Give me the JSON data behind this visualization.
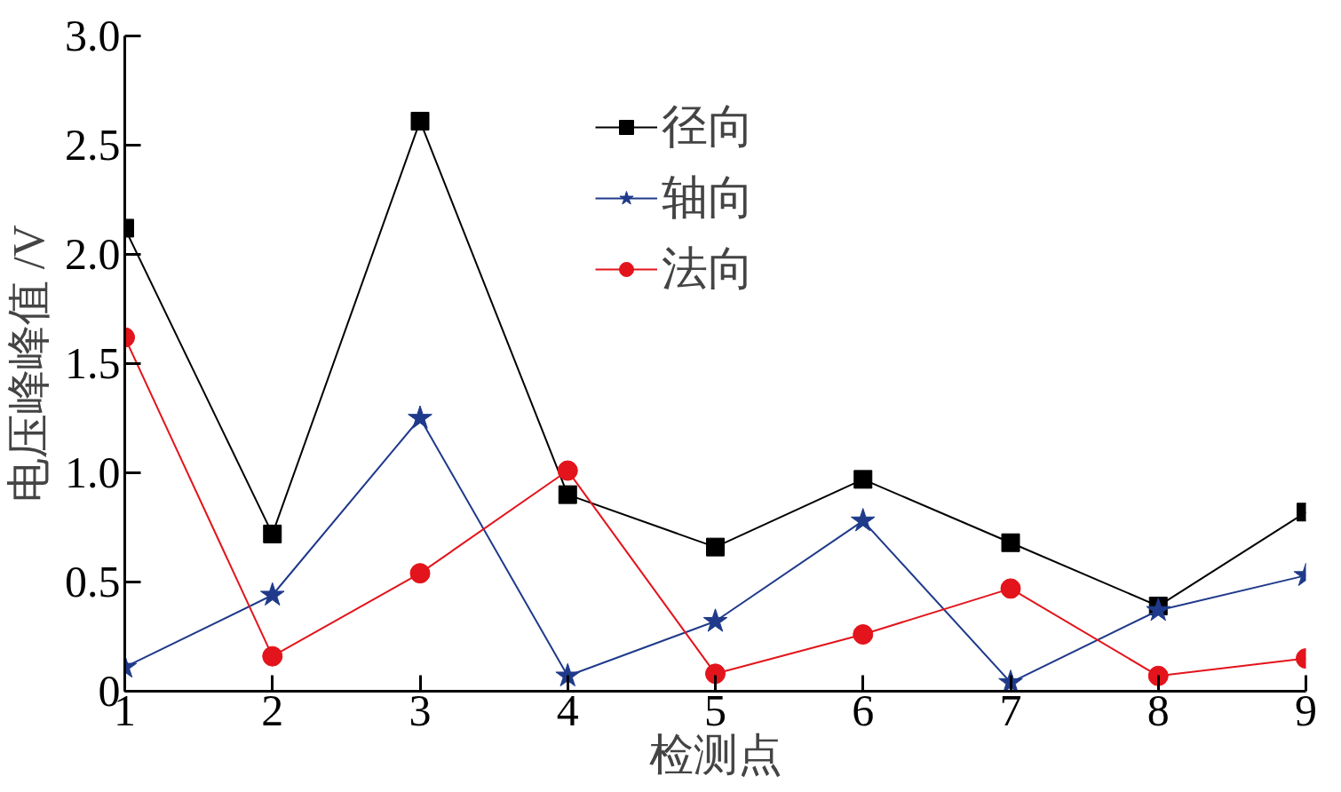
{
  "chart_data": {
    "type": "line",
    "xlabel": "检测点",
    "ylabel": "电压峰峰值 /V",
    "x": [
      1,
      2,
      3,
      4,
      5,
      6,
      7,
      8,
      9
    ],
    "xlim": [
      1,
      9
    ],
    "xticks": [
      1,
      2,
      3,
      4,
      5,
      6,
      7,
      8,
      9
    ],
    "ylim": [
      0,
      3
    ],
    "yticks": [
      0,
      {
        "value": 0.5,
        "label": "0.5"
      },
      {
        "value": 1,
        "label": "1.0"
      },
      {
        "value": 1.5,
        "label": "1.5"
      },
      {
        "value": 2,
        "label": "2.0"
      },
      {
        "value": 2.5,
        "label": "2.5"
      },
      {
        "value": 3,
        "label": "3.0"
      }
    ],
    "grid": false,
    "legend": "top",
    "line_style": "solid",
    "series": [
      {
        "name": "径向",
        "color": "#000000",
        "marker": "square",
        "values": [
          2.12,
          0.72,
          2.61,
          0.9,
          0.66,
          0.97,
          0.68,
          0.39,
          0.82
        ]
      },
      {
        "name": "轴向",
        "color": "#1f3a8a",
        "marker": "star",
        "values": [
          0.11,
          0.44,
          1.25,
          0.07,
          0.32,
          0.78,
          0.04,
          0.37,
          0.53
        ]
      },
      {
        "name": "法向",
        "color": "#e3141b",
        "marker": "circle",
        "values": [
          1.62,
          0.16,
          0.54,
          1.01,
          0.08,
          0.26,
          0.47,
          0.07,
          0.15
        ]
      }
    ]
  }
}
